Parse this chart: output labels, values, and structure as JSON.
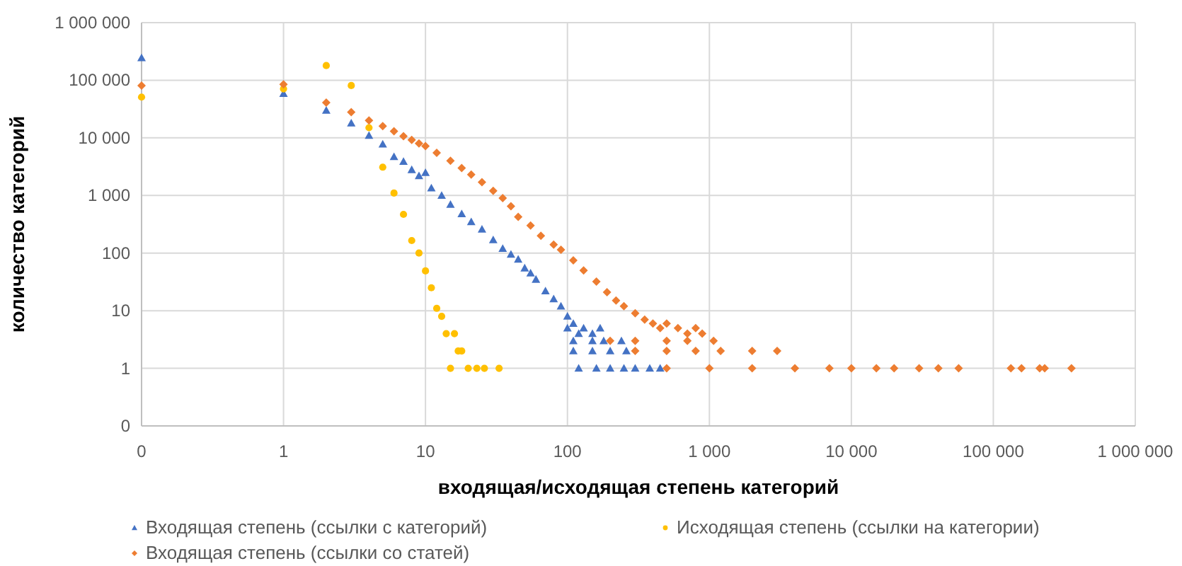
{
  "chart_data": {
    "type": "scatter",
    "xlabel": "входящая/исходящая степень категорий",
    "ylabel": "количество категорий",
    "log": "xy",
    "grid": true,
    "legend": "bottom",
    "xlim": [
      0.1,
      1000000
    ],
    "xticks": [
      {
        "value": 0.1,
        "label": "0"
      },
      1,
      10,
      100,
      {
        "value": 1000,
        "label": "1 000"
      },
      {
        "value": 10000,
        "label": "10 000"
      },
      {
        "value": 100000,
        "label": "100 000"
      },
      {
        "value": 1000000,
        "label": "1 000 000"
      }
    ],
    "ylim": [
      0.1,
      1000000
    ],
    "yticks": [
      {
        "value": 0.1,
        "label": "0"
      },
      1,
      10,
      100,
      {
        "value": 1000,
        "label": "1 000"
      },
      {
        "value": 10000,
        "label": "10 000"
      },
      {
        "value": 100000,
        "label": "100 000"
      },
      {
        "value": 1000000,
        "label": "1 000 000"
      }
    ],
    "series": [
      {
        "name": "Входящая степень (ссылки с категорий)",
        "color": "#4472c4",
        "marker": "triangle",
        "x": [
          0.1,
          1,
          2,
          3,
          4,
          5,
          6,
          7,
          8,
          9,
          10,
          11,
          13,
          15,
          18,
          21,
          25,
          30,
          35,
          40,
          45,
          50,
          55,
          60,
          70,
          80,
          90,
          100,
          100,
          110,
          120,
          130,
          150,
          170,
          110,
          150,
          180,
          240,
          110,
          150,
          200,
          260,
          120,
          160,
          200,
          250,
          300,
          380,
          450
        ],
        "values": [
          245000,
          59000,
          30000,
          18000,
          11000,
          7800,
          4700,
          3900,
          2800,
          2200,
          2500,
          1350,
          1000,
          700,
          480,
          350,
          260,
          170,
          120,
          95,
          78,
          55,
          45,
          35,
          22,
          16,
          12,
          8,
          5,
          6,
          4,
          5,
          4,
          5,
          3,
          3,
          3,
          3,
          2,
          2,
          2,
          2,
          1,
          1,
          1,
          1,
          1,
          1,
          1
        ]
      },
      {
        "name": "Исходящая степень (ссылки на категории)",
        "color": "#ffc000",
        "marker": "circle",
        "x": [
          0.1,
          1,
          2,
          3,
          4,
          5,
          6,
          7,
          8,
          9,
          10,
          11,
          12,
          13,
          14,
          16,
          17,
          18,
          15,
          20,
          23,
          26,
          33
        ],
        "values": [
          51000,
          71000,
          180000,
          81000,
          15000,
          3100,
          1100,
          470,
          165,
          100,
          49,
          25,
          11,
          8,
          4,
          4,
          2,
          2,
          1,
          1,
          1,
          1,
          1
        ]
      },
      {
        "name": "Входящая степень (ссылки со статей)",
        "color": "#ed7d31",
        "marker": "diamond",
        "x": [
          0.1,
          1,
          2,
          3,
          4,
          5,
          6,
          7,
          8,
          9,
          10,
          12,
          15,
          18,
          21,
          25,
          30,
          35,
          40,
          45,
          55,
          65,
          80,
          90,
          110,
          130,
          160,
          190,
          220,
          250,
          300,
          350,
          400,
          450,
          500,
          600,
          700,
          800,
          890,
          200,
          300,
          500,
          700,
          1070,
          300,
          500,
          800,
          1200,
          2000,
          3000,
          500,
          1000,
          2000,
          4000,
          7000,
          10000,
          15000,
          20000,
          30000,
          41000,
          57000,
          133000,
          158000,
          212000,
          230000,
          355000
        ],
        "values": [
          81000,
          85000,
          41000,
          28000,
          20000,
          16000,
          13000,
          10700,
          9200,
          8000,
          7200,
          5500,
          4000,
          3000,
          2300,
          1700,
          1200,
          900,
          650,
          425,
          300,
          200,
          140,
          114,
          75,
          50,
          32,
          21,
          15,
          12,
          9,
          7,
          6,
          5,
          6,
          5,
          4,
          5,
          4,
          3,
          3,
          3,
          3,
          3,
          2,
          2,
          2,
          2,
          2,
          2,
          1,
          1,
          1,
          1,
          1,
          1,
          1,
          1,
          1,
          1,
          1,
          1,
          1,
          1,
          1,
          1
        ]
      }
    ]
  }
}
